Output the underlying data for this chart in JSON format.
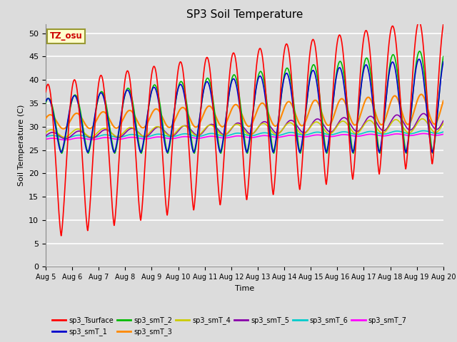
{
  "title": "SP3 Soil Temperature",
  "ylabel": "Soil Temperature (C)",
  "xlabel": "Time",
  "tz_label": "TZ_osu",
  "ylim": [
    0,
    52
  ],
  "xlim": [
    0,
    360
  ],
  "background_color": "#dcdcdc",
  "plot_bg_color": "#dcdcdc",
  "grid_color": "#ffffff",
  "series": {
    "sp3_Tsurface": "#ff0000",
    "sp3_smT_1": "#0000cc",
    "sp3_smT_2": "#00bb00",
    "sp3_smT_3": "#ff8800",
    "sp3_smT_4": "#cccc00",
    "sp3_smT_5": "#8800aa",
    "sp3_smT_6": "#00cccc",
    "sp3_smT_7": "#ff00ff"
  },
  "x_tick_labels": [
    "Aug 5",
    "Aug 6",
    "Aug 7",
    "Aug 8",
    "Aug 9",
    "Aug 10",
    "Aug 11",
    "Aug 12",
    "Aug 13",
    "Aug 14",
    "Aug 15",
    "Aug 16",
    "Aug 17",
    "Aug 18",
    "Aug 19",
    "Aug 20"
  ],
  "x_tick_positions": [
    0,
    24,
    48,
    72,
    96,
    120,
    144,
    168,
    192,
    216,
    240,
    264,
    288,
    312,
    336,
    360
  ],
  "yticks": [
    0,
    5,
    10,
    15,
    20,
    25,
    30,
    35,
    40,
    45,
    50
  ]
}
